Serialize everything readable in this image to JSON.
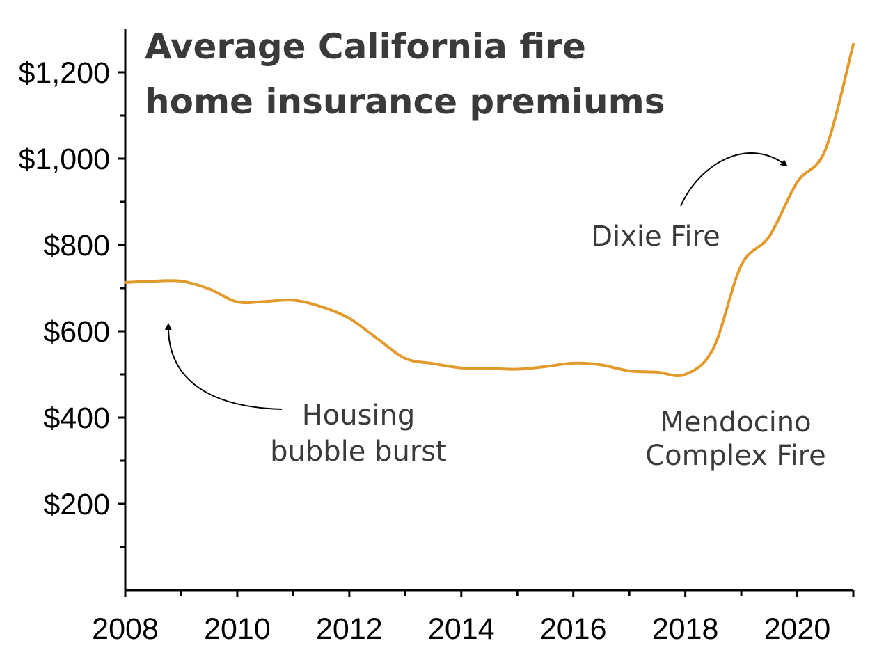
{
  "colors": {
    "series": "#E39A2D",
    "axis": "#000000",
    "text": "#3a3a3a",
    "arrow": "#000000"
  },
  "chart_data": {
    "type": "line",
    "title": "Average California fire home insurance premiums",
    "title_lines": [
      "Average California fire",
      "home insurance premiums"
    ],
    "xlabel": "",
    "ylabel": "",
    "xlim": [
      2008,
      2021
    ],
    "ylim": [
      0,
      1300
    ],
    "x_ticks": [
      2008,
      2010,
      2012,
      2014,
      2016,
      2018,
      2020
    ],
    "x_tick_labels": [
      "2008",
      "2010",
      "2012",
      "2014",
      "2016",
      "2018",
      "2020"
    ],
    "x_minor_ticks": [
      2009,
      2011,
      2013,
      2015,
      2017,
      2019
    ],
    "y_ticks": [
      200,
      400,
      600,
      800,
      1000,
      1200
    ],
    "y_tick_labels": [
      "$200",
      "$400",
      "$600",
      "$800",
      "$1,000",
      "$1,200"
    ],
    "y_minor_ticks": [
      100,
      300,
      500,
      700,
      900,
      1100
    ],
    "grid": false,
    "legend": "none",
    "series": [
      {
        "x": [
          2008,
          2008.5,
          2009,
          2009.5,
          2010,
          2010.5,
          2011,
          2011.5,
          2012,
          2012.5,
          2013,
          2013.5,
          2014,
          2014.5,
          2015,
          2015.5,
          2016,
          2016.5,
          2017,
          2017.5,
          2018,
          2018.5,
          2019,
          2019.5,
          2020,
          2020.5,
          2021
        ],
        "values": [
          713,
          716,
          716,
          698,
          668,
          669,
          672,
          657,
          630,
          583,
          537,
          525,
          515,
          514,
          512,
          518,
          526,
          522,
          508,
          505,
          500,
          560,
          753,
          820,
          946,
          1020,
          1265
        ]
      }
    ],
    "annotations": [
      {
        "text_lines": [
          "Housing",
          "bubble burst"
        ],
        "arrow_target": [
          2008.75,
          610
        ]
      },
      {
        "text_lines": [
          "Mendocino",
          "Complex Fire"
        ],
        "arrow_target": null
      },
      {
        "text_lines": [
          "Dixie Fire"
        ],
        "arrow_target": [
          2019.85,
          985
        ]
      }
    ]
  }
}
